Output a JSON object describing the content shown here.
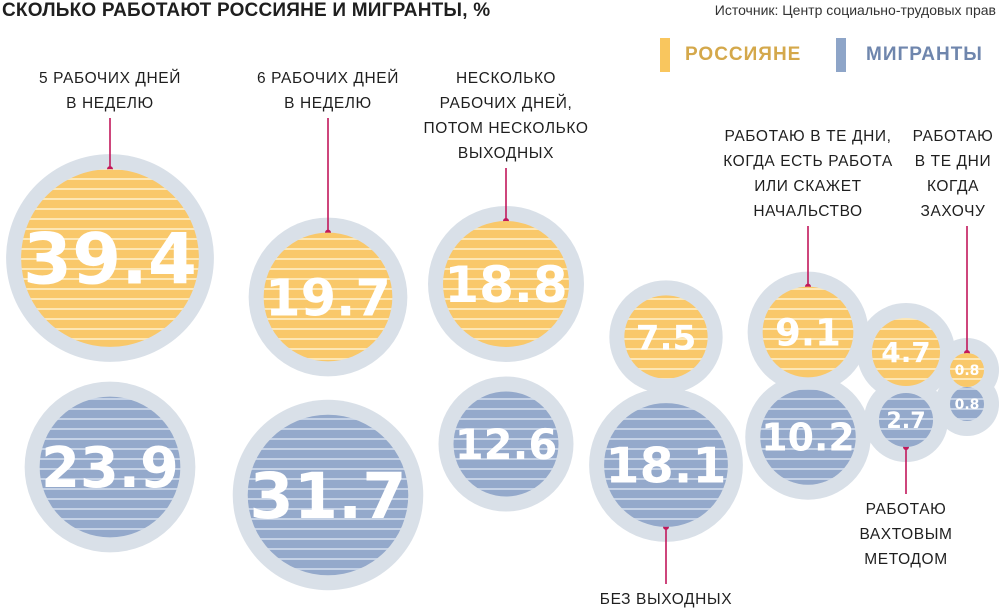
{
  "header": {
    "title": "СКОЛЬКО РАБОТАЮТ РОССИЯНЕ И МИГРАНТЫ, %",
    "source": "Источник: Центр социально-трудовых прав"
  },
  "legend": {
    "russians": "РОССИЯНЕ",
    "migrants": "МИГРАНТЫ"
  },
  "colors": {
    "russians": "#f9c86a",
    "migrants": "#94a9cb",
    "halo": "#d9e0e8",
    "leader": "#c2185b",
    "russians_legend": "#f9c65e",
    "migrants_legend": "#8ea5c8",
    "russians_text": "#d4a84b",
    "migrants_text": "#6f86ad"
  },
  "chart_data": {
    "type": "bubble",
    "title": "СКОЛЬКО РАБОТАЮТ РОССИЯНЕ И МИГРАНТЫ, %",
    "series": [
      {
        "name": "РОССИЯНЕ",
        "values": [
          39.4,
          19.7,
          18.8,
          7.5,
          9.1,
          4.7,
          0.8
        ]
      },
      {
        "name": "МИГРАНТЫ",
        "values": [
          23.9,
          31.7,
          12.6,
          18.1,
          10.2,
          2.7,
          0.8
        ]
      }
    ],
    "categories": [
      {
        "label": [
          "5 РАБОЧИХ ДНЕЙ",
          "В НЕДЕЛЮ"
        ]
      },
      {
        "label": [
          "6 РАБОЧИХ ДНЕЙ",
          "В НЕДЕЛЮ"
        ]
      },
      {
        "label": [
          "НЕСКОЛЬКО",
          "РАБОЧИХ ДНЕЙ,",
          "ПОТОМ НЕСКОЛЬКО",
          "ВЫХОДНЫХ"
        ]
      },
      {
        "label": [
          "БЕЗ ВЫХОДНЫХ"
        ]
      },
      {
        "label": [
          "РАБОТАЮ В ТЕ ДНИ,",
          "КОГДА ЕСТЬ РАБОТА",
          "ИЛИ СКАЖЕТ",
          "НАЧАЛЬСТВО"
        ]
      },
      {
        "label": [
          "РАБОТАЮ",
          "ВАХТОВЫМ",
          "МЕТОДОМ"
        ]
      },
      {
        "label": [
          "РАБОТАЮ",
          "В ТЕ ДНИ",
          "КОГДА",
          "ЗАХОЧУ"
        ]
      }
    ]
  }
}
